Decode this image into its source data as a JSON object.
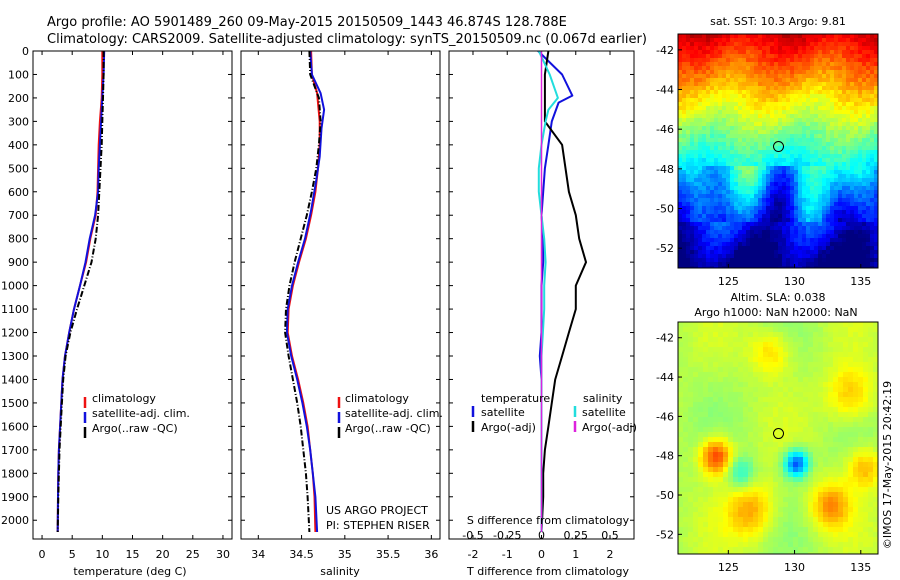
{
  "header": {
    "line1": "Argo profile: AO 5901489_260 09-May-2015 20150509_1443 46.874S 128.788E",
    "line2": "Climatology: CARS2009. Satellite-adjusted climatology: synTS_20150509.nc (0.067d earlier)"
  },
  "colors": {
    "climatology": "#ee1111",
    "satellite": "#1111dd",
    "argo": "#000000",
    "sal_satellite": "#22dddd",
    "sal_argo": "#dd22dd"
  },
  "chart_data": [
    {
      "type": "line",
      "panel": "temperature",
      "xlabel": "temperature (deg C)",
      "ylabel": "",
      "xlim": [
        -1.5,
        31.5
      ],
      "ylim": [
        2080,
        0
      ],
      "x_ticks": [
        0,
        5,
        10,
        15,
        20,
        25,
        30
      ],
      "y_ticks": [
        0,
        100,
        200,
        300,
        400,
        500,
        600,
        700,
        800,
        900,
        1000,
        1100,
        1200,
        1300,
        1400,
        1500,
        1600,
        1700,
        1800,
        1900,
        2000
      ],
      "legend": [
        "climatology",
        "satellite-adj. clim.",
        "Argo(..raw -QC)"
      ],
      "series": [
        {
          "name": "climatology",
          "style": "solid",
          "x": [
            10.0,
            10.0,
            9.9,
            9.6,
            9.4,
            9.3,
            9.2,
            8.9,
            8.0,
            7.3,
            6.3,
            5.3,
            4.5,
            3.8,
            3.4,
            3.2,
            3.0,
            2.8,
            2.7,
            2.65,
            2.6
          ],
          "y": [
            0,
            100,
            200,
            300,
            400,
            500,
            600,
            700,
            800,
            900,
            1000,
            1100,
            1200,
            1300,
            1400,
            1500,
            1600,
            1700,
            1800,
            1900,
            2050
          ]
        },
        {
          "name": "satellite-adj. clim.",
          "style": "solid",
          "x": [
            10.3,
            10.2,
            10.0,
            9.8,
            9.6,
            9.4,
            9.3,
            8.8,
            7.9,
            7.2,
            6.3,
            5.3,
            4.5,
            3.8,
            3.4,
            3.2,
            3.0,
            2.8,
            2.7,
            2.65,
            2.6
          ],
          "y": [
            0,
            100,
            200,
            300,
            400,
            500,
            600,
            700,
            800,
            900,
            1000,
            1100,
            1200,
            1300,
            1400,
            1500,
            1600,
            1700,
            1800,
            1900,
            2050
          ]
        },
        {
          "name": "Argo(..raw -QC)",
          "style": "dashdot",
          "x": [
            10.2,
            10.2,
            10.1,
            10.0,
            9.9,
            9.7,
            9.5,
            9.3,
            8.9,
            8.2,
            7.0,
            5.8,
            4.7,
            3.9,
            3.5,
            3.3,
            3.1,
            2.9,
            2.8,
            2.7,
            2.6
          ],
          "y": [
            0,
            100,
            200,
            300,
            400,
            500,
            600,
            700,
            800,
            900,
            1000,
            1100,
            1200,
            1300,
            1400,
            1500,
            1600,
            1700,
            1800,
            1900,
            2050
          ]
        }
      ]
    },
    {
      "type": "line",
      "panel": "salinity",
      "xlabel": "salinity",
      "xlim": [
        33.8,
        36.1
      ],
      "ylim": [
        2080,
        0
      ],
      "x_ticks": [
        34,
        34.5,
        35,
        35.5,
        36
      ],
      "legend": [
        "climatology",
        "satellite-adj. clim.",
        "Argo(..raw -QC)"
      ],
      "annotations": [
        "US ARGO PROJECT",
        "PI: STEPHEN RISER"
      ],
      "series": [
        {
          "name": "climatology",
          "style": "solid",
          "x": [
            34.61,
            34.62,
            34.68,
            34.71,
            34.71,
            34.69,
            34.66,
            34.61,
            34.55,
            34.47,
            34.4,
            34.35,
            34.34,
            34.39,
            34.46,
            34.52,
            34.57,
            34.6,
            34.63,
            34.65,
            34.66
          ],
          "y": [
            0,
            100,
            180,
            300,
            400,
            500,
            600,
            700,
            800,
            900,
            1000,
            1100,
            1200,
            1300,
            1400,
            1500,
            1600,
            1700,
            1800,
            1900,
            2050
          ]
        },
        {
          "name": "satellite-adj. clim.",
          "style": "solid",
          "x": [
            34.6,
            34.62,
            34.72,
            34.76,
            34.73,
            34.71,
            34.67,
            34.61,
            34.54,
            34.46,
            34.39,
            34.34,
            34.33,
            34.38,
            34.45,
            34.51,
            34.56,
            34.6,
            34.63,
            34.66,
            34.68
          ],
          "y": [
            0,
            100,
            180,
            250,
            330,
            450,
            550,
            680,
            800,
            900,
            1000,
            1100,
            1200,
            1300,
            1400,
            1500,
            1600,
            1700,
            1800,
            1900,
            2050
          ]
        },
        {
          "name": "Argo(..raw -QC)",
          "style": "dashdot",
          "x": [
            34.59,
            34.6,
            34.7,
            34.72,
            34.7,
            34.67,
            34.62,
            34.56,
            34.49,
            34.42,
            34.36,
            34.32,
            34.31,
            34.35,
            34.4,
            34.45,
            34.49,
            34.52,
            34.55,
            34.57,
            34.59
          ],
          "y": [
            0,
            100,
            200,
            300,
            400,
            500,
            600,
            700,
            800,
            900,
            1000,
            1100,
            1200,
            1300,
            1400,
            1500,
            1600,
            1700,
            1800,
            1900,
            2050
          ]
        }
      ]
    },
    {
      "type": "line",
      "panel": "difference",
      "xlabel": "T difference from climatology",
      "secondary_xlabel": "S difference from climatology",
      "xlim": [
        -2.7,
        2.7
      ],
      "ylim": [
        2080,
        0
      ],
      "x_ticks": [
        -2,
        -1,
        0,
        1,
        2
      ],
      "secondary_x_ticks": [
        -0.5,
        -0.25,
        0,
        0.25,
        0.5
      ],
      "legend_titles": [
        "temperature",
        "salinity"
      ],
      "legend": [
        "satellite",
        "Argo(-adj)",
        "satellite",
        "Argo(-adj)"
      ],
      "series": [
        {
          "name": "temperature satellite",
          "style": "solid",
          "x": [
            -0.1,
            0.6,
            0.9,
            0.5,
            0.3,
            0.2,
            0.1,
            0.05,
            0.0,
            0.05,
            0.05,
            0.0,
            0.0,
            0.0,
            -0.05,
            0.0,
            0.0,
            0.0,
            0.0,
            0.0,
            0.0
          ],
          "y": [
            0,
            100,
            190,
            220,
            300,
            400,
            500,
            600,
            700,
            800,
            900,
            1000,
            1100,
            1200,
            1300,
            1400,
            1500,
            1600,
            1700,
            1800,
            2050
          ]
        },
        {
          "name": "temperature Argo(-adj)",
          "style": "solid",
          "x": [
            0.2,
            0.1,
            0.1,
            0.1,
            0.6,
            0.7,
            0.8,
            1.0,
            1.1,
            1.3,
            1.0,
            1.0,
            0.8,
            0.6,
            0.4,
            0.3,
            0.2,
            0.1,
            0.05,
            0.05,
            0.0
          ],
          "y": [
            0,
            100,
            200,
            300,
            400,
            500,
            600,
            700,
            800,
            900,
            1000,
            1100,
            1200,
            1300,
            1400,
            1500,
            1600,
            1700,
            1800,
            1900,
            2050
          ]
        },
        {
          "name": "salinity satellite",
          "style": "solid",
          "x": [
            -0.02,
            0.06,
            0.12,
            0.05,
            0.03,
            0.0,
            -0.02,
            -0.02,
            0.0,
            0.02,
            0.03,
            0.02,
            0.02,
            0.01,
            0.0,
            0.0,
            0.0,
            0.0,
            0.0,
            0.0,
            0.0
          ],
          "y": [
            0,
            100,
            200,
            250,
            300,
            400,
            500,
            600,
            700,
            800,
            900,
            1000,
            1100,
            1200,
            1300,
            1400,
            1500,
            1600,
            1700,
            1800,
            2050
          ]
        },
        {
          "name": "salinity Argo(-adj)",
          "style": "solid",
          "x": [
            0.0,
            0.0
          ],
          "y": [
            0,
            2050
          ]
        }
      ]
    },
    {
      "type": "heatmap",
      "panel": "sst-map",
      "title": "sat. SST: 10.3 Argo: 9.81",
      "x_ticks": [
        125,
        130,
        135
      ],
      "y_ticks": [
        -42,
        -44,
        -46,
        -48,
        -50,
        -52
      ],
      "xlim": [
        121.2,
        136.3
      ],
      "ylim": [
        -53.0,
        -41.2
      ],
      "marker": {
        "lon": 128.788,
        "lat": -46.874
      }
    },
    {
      "type": "heatmap",
      "panel": "sla-map",
      "title": "Altim. SLA: 0.038",
      "subtitle": "Argo h1000: NaN h2000: NaN",
      "x_ticks": [
        125,
        130,
        135
      ],
      "y_ticks": [
        -42,
        -44,
        -46,
        -48,
        -50,
        -52
      ],
      "xlim": [
        121.2,
        136.3
      ],
      "ylim": [
        -53.0,
        -41.2
      ],
      "marker": {
        "lon": 128.788,
        "lat": -46.874
      }
    }
  ],
  "side_label": "©IMOS 17-May-2015 20:42:19"
}
